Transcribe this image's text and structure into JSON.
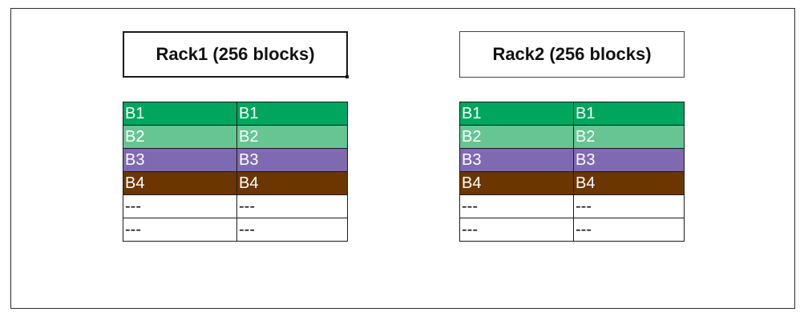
{
  "racks": [
    {
      "title": "Rack1 (256 blocks)",
      "rows": [
        {
          "cells": [
            "B1",
            "B1"
          ],
          "color": "#00a65d"
        },
        {
          "cells": [
            "B2",
            "B2"
          ],
          "color": "#66c593"
        },
        {
          "cells": [
            "B3",
            "B3"
          ],
          "color": "#7f6ab2"
        },
        {
          "cells": [
            "B4",
            "B4"
          ],
          "color": "#6b3600"
        },
        {
          "cells": [
            "---",
            "---"
          ],
          "color": "#ffffff"
        },
        {
          "cells": [
            "---",
            "---"
          ],
          "color": "#ffffff"
        }
      ]
    },
    {
      "title": "Rack2 (256 blocks)",
      "rows": [
        {
          "cells": [
            "B1",
            "B1"
          ],
          "color": "#00a65d"
        },
        {
          "cells": [
            "B2",
            "B2"
          ],
          "color": "#66c593"
        },
        {
          "cells": [
            "B3",
            "B3"
          ],
          "color": "#7f6ab2"
        },
        {
          "cells": [
            "B4",
            "B4"
          ],
          "color": "#6b3600"
        },
        {
          "cells": [
            "---",
            "---"
          ],
          "color": "#ffffff"
        },
        {
          "cells": [
            "---",
            "---"
          ],
          "color": "#ffffff"
        }
      ]
    }
  ]
}
